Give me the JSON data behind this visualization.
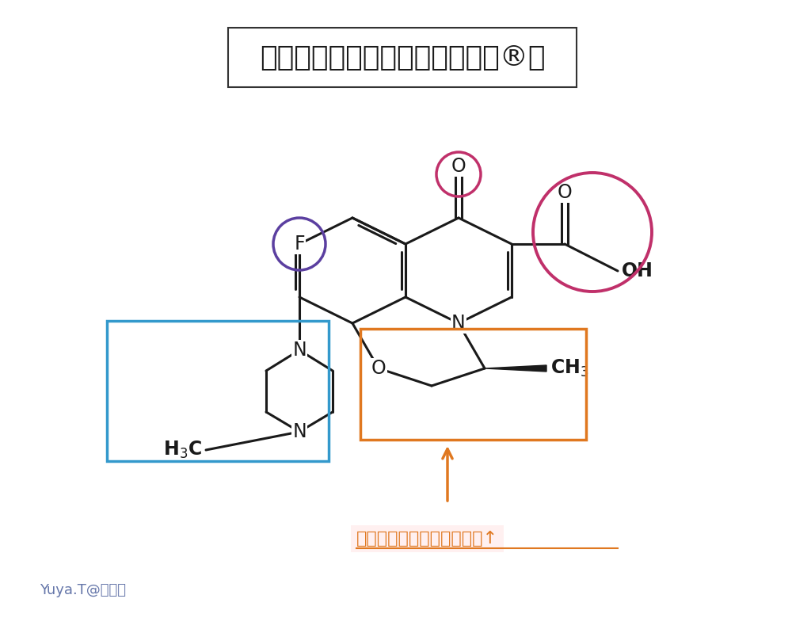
{
  "title": "レボフロキサシン（クラビット®）",
  "bg_color": "#ffffff",
  "bond_color": "#1a1a1a",
  "circle_F_color": "#5b3fa0",
  "circle_ketone_color": "#c0306a",
  "circle_acid_color": "#c0306a",
  "box_piperazine_color": "#3399cc",
  "box_oxazine_color": "#e07820",
  "arrow_color": "#e07820",
  "text_annotation_color": "#e07820",
  "watermark_color": "#6677aa",
  "watermark_text": "Yuya.T@薄劑師",
  "annotation_text": "グラム陽性菌への抗菌活性↑"
}
